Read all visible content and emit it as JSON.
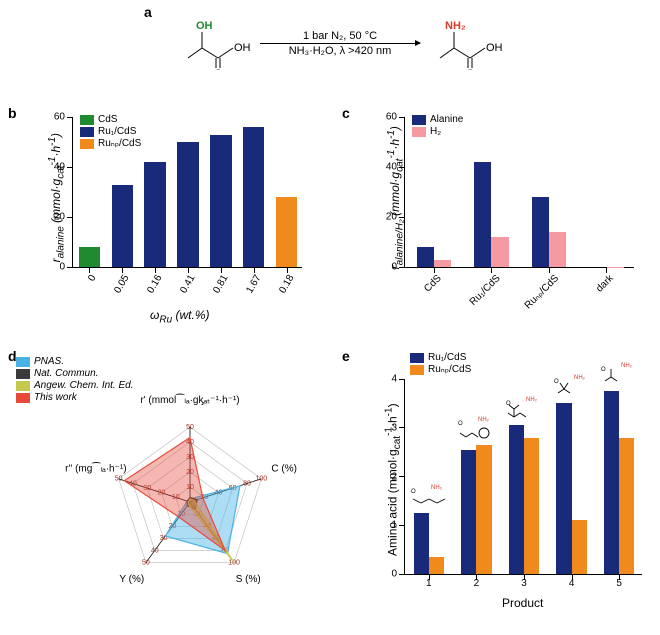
{
  "panel_labels": {
    "a": "a",
    "b": "b",
    "c": "c",
    "d": "d",
    "e": "e"
  },
  "reaction": {
    "top_text": "1 bar N₂, 50 °C",
    "bottom_text": "NH₃·H₂O, λ >420 nm",
    "start": {
      "oh_label": "OH",
      "oh_color": "#1f8a2f",
      "cooh_label": "OH",
      "carbonyl": "O"
    },
    "end": {
      "nh2_label": "NH₂",
      "nh2_color": "#d83a2b",
      "cooh_label": "OH",
      "carbonyl": "O"
    }
  },
  "panel_b": {
    "type": "bar",
    "ylim": [
      0,
      60
    ],
    "ytick_step": 20,
    "y_title": "rₐₗₐₙᵢₙₑ (mmol·gᶄₐₜ⁻¹·h⁻¹)",
    "x_title": "ωᵣᵤ (wt.%)",
    "categories": [
      "0",
      "0.05",
      "0.16",
      "0.41",
      "0.81",
      "1.67",
      "0.18"
    ],
    "values": [
      8,
      33,
      42,
      50,
      53,
      56,
      28
    ],
    "colors": [
      "#1f8a2f",
      "#1a2a7a",
      "#1a2a7a",
      "#1a2a7a",
      "#1a2a7a",
      "#1a2a7a",
      "#f08a1d"
    ],
    "rotate_x": -60,
    "legend": [
      {
        "label": "CdS",
        "color": "#1f8a2f"
      },
      {
        "label": "Ru₁/CdS",
        "color": "#1a2a7a"
      },
      {
        "label": "Ruₙₚ/CdS",
        "color": "#f08a1d"
      }
    ]
  },
  "panel_c": {
    "type": "grouped-bar",
    "ylim": [
      0,
      60
    ],
    "ytick_step": 20,
    "y_title": "rₐₗₐₙᵢₙₑ/H₂ (mmol·gᶄₐₜ⁻¹·h⁻¹)",
    "categories": [
      "CdS",
      "Ru₁/CdS",
      "Ruₙₚ/CdS",
      "dark"
    ],
    "series": [
      {
        "name": "Alanine",
        "color": "#1a2a7a",
        "values": [
          8,
          42,
          28,
          0
        ]
      },
      {
        "name": "H₂",
        "color": "#f59aa0",
        "values": [
          3,
          12,
          14,
          0.2
        ]
      }
    ],
    "rotate_x": -45
  },
  "panel_d": {
    "type": "radar",
    "axes": [
      {
        "label": "r' (mmol⁀ₗₐ·gᶄₐₜ⁻¹·h⁻¹)",
        "ticks": [
          "10",
          "20",
          "30",
          "40",
          "50"
        ]
      },
      {
        "label": "C (%)",
        "ticks": [
          "20",
          "40",
          "60",
          "80",
          "100"
        ]
      },
      {
        "label": "S (%)",
        "ticks": [
          "20",
          "40",
          "60",
          "80",
          "100"
        ]
      },
      {
        "label": "Y (%)",
        "ticks": [
          "10",
          "20",
          "30",
          "40",
          "50"
        ]
      },
      {
        "label": "r'' (mg⁀ₗₐ·h⁻¹)",
        "ticks": [
          "10",
          "20",
          "30",
          "40",
          "50"
        ]
      }
    ],
    "series": [
      {
        "name": "PNAS.",
        "color": "#4ab3e6",
        "fill_opacity": 0.45,
        "values": [
          0.04,
          0.7,
          0.85,
          0.56,
          0.04
        ]
      },
      {
        "name": "Nat. Commun.",
        "color": "#3a3a3a",
        "fill_opacity": 0.55,
        "values": [
          0.06,
          0.1,
          0.12,
          0.06,
          0.04
        ]
      },
      {
        "name": "Angew. Chem. Int. Ed.",
        "color": "#c5c84a",
        "fill_opacity": 0.55,
        "values": [
          0.04,
          0.06,
          1.0,
          0.04,
          0.02
        ]
      },
      {
        "name": "This work",
        "color": "#e74a3b",
        "fill_opacity": 0.4,
        "values": [
          0.86,
          0.18,
          0.8,
          0.25,
          0.92
        ]
      }
    ],
    "legend": [
      {
        "label": "PNAS.",
        "color": "#4ab3e6",
        "italic": true
      },
      {
        "label": "Nat. Commun.",
        "color": "#3a3a3a",
        "italic": true
      },
      {
        "label": "Angew. Chem. Int. Ed.",
        "color": "#c5c84a",
        "italic": true
      },
      {
        "label": "This work",
        "color": "#e74a3b",
        "italic": true
      }
    ]
  },
  "panel_e": {
    "type": "grouped-bar",
    "ylim": [
      0,
      4
    ],
    "ytick_step": 1,
    "y_title": "Amino acid (mmol·gᶄₐₜ⁻¹·h⁻¹)",
    "x_title": "Product",
    "categories": [
      "1",
      "2",
      "3",
      "4",
      "5"
    ],
    "series": [
      {
        "name": "Ru₁/CdS",
        "color": "#1a2a7a",
        "values": [
          1.25,
          2.55,
          3.05,
          3.5,
          3.75
        ]
      },
      {
        "name": "Ruₙₚ/CdS",
        "color": "#f08a1d",
        "values": [
          0.35,
          2.65,
          2.8,
          1.1,
          2.8
        ]
      }
    ],
    "mol_labels": [
      "glu",
      "phe",
      "leu",
      "val",
      "abu"
    ]
  },
  "colors": {
    "axis": "#000000",
    "bg": "#ffffff"
  }
}
